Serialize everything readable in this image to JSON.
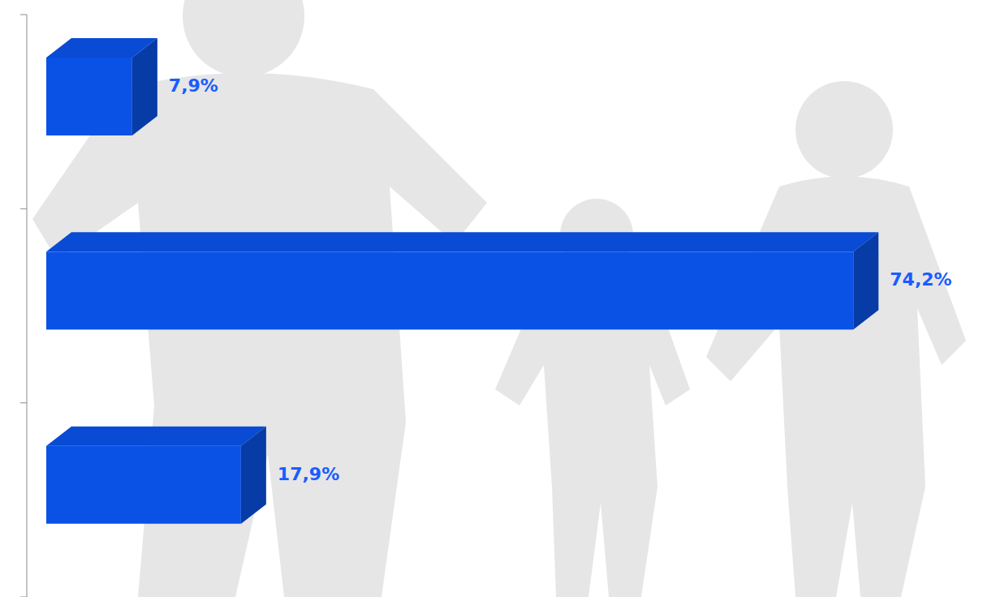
{
  "chart_data": {
    "type": "bar",
    "orientation": "horizontal",
    "categories": [
      null,
      null,
      null
    ],
    "values": [
      7.9,
      74.2,
      17.9
    ],
    "value_labels": [
      "7,9%",
      "74,2%",
      "17,9%"
    ],
    "xlim": [
      0,
      80
    ],
    "color": "#0a52e6",
    "data_labels": true,
    "tick_labels": false
  }
}
